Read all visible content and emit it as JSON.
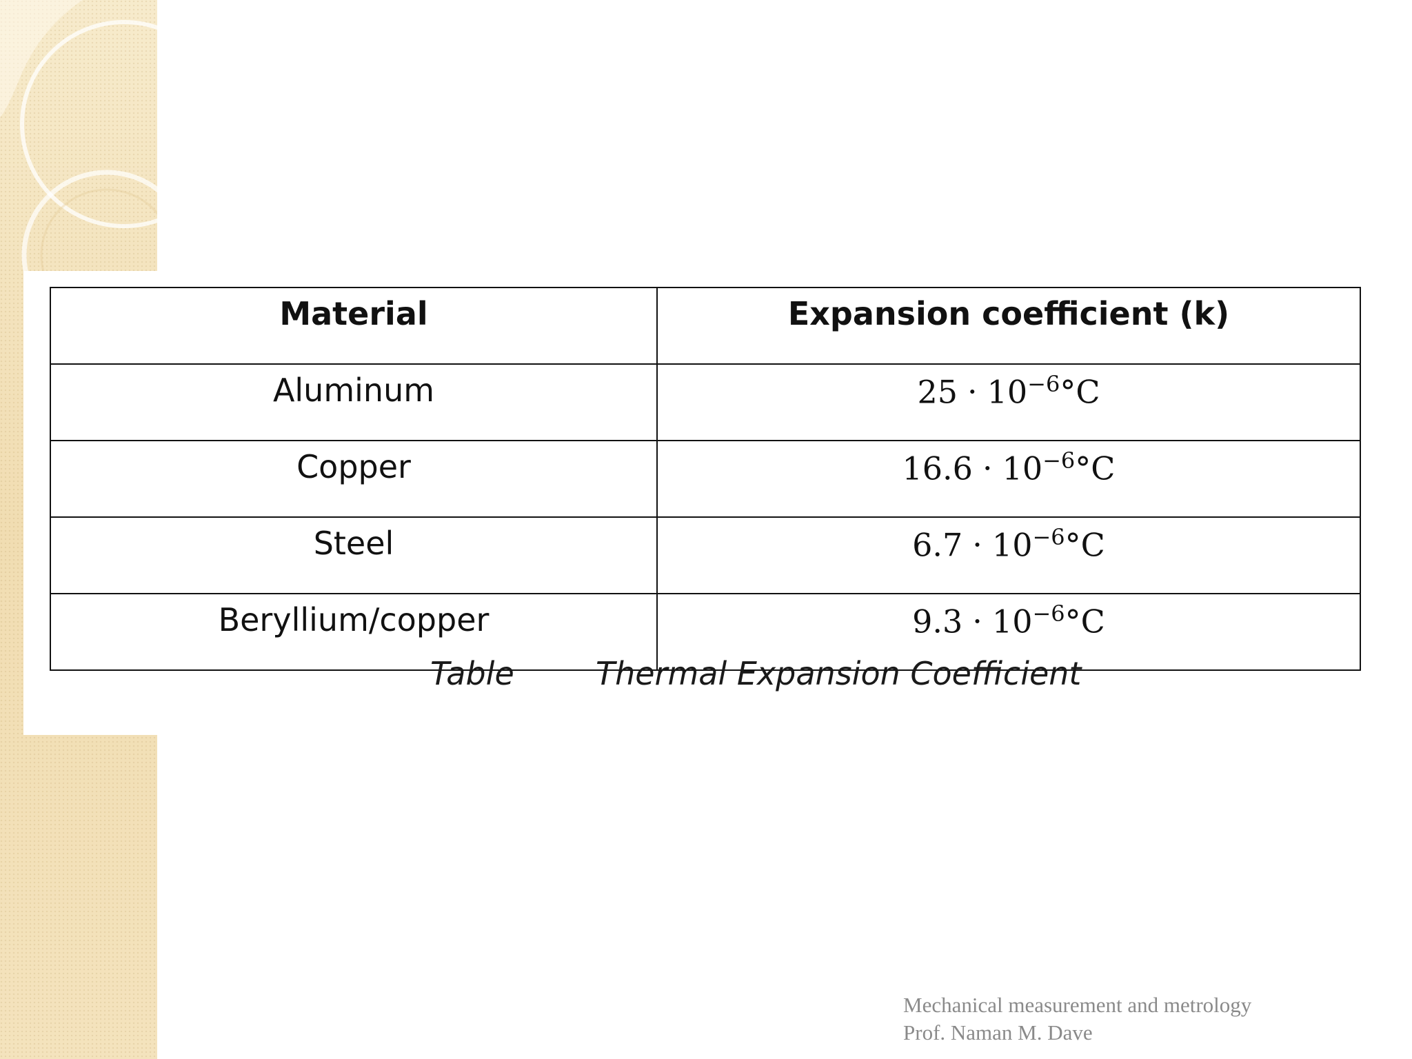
{
  "table": {
    "headers": [
      "Material",
      "Expansion coefficient (k)"
    ],
    "rows": [
      {
        "material": "Aluminum",
        "mantissa": "25",
        "exponent": "−6"
      },
      {
        "material": "Copper",
        "mantissa": "16.6",
        "exponent": "−6"
      },
      {
        "material": "Steel",
        "mantissa": "6.7",
        "exponent": "−6"
      },
      {
        "material": "Beryllium/copper",
        "mantissa": "9.3",
        "exponent": "−6"
      }
    ],
    "base": "10",
    "unit": "°C",
    "dot": "·"
  },
  "caption": {
    "label": "Table",
    "title": "Thermal Expansion Coefficient"
  },
  "footer": {
    "line1": "Mechanical measurement and metrology",
    "line2": "Prof. Naman M. Dave"
  },
  "colors": {
    "side_strip": "#f3e2bb",
    "table_border": "#111111",
    "footer_text": "#8a8a8a"
  }
}
